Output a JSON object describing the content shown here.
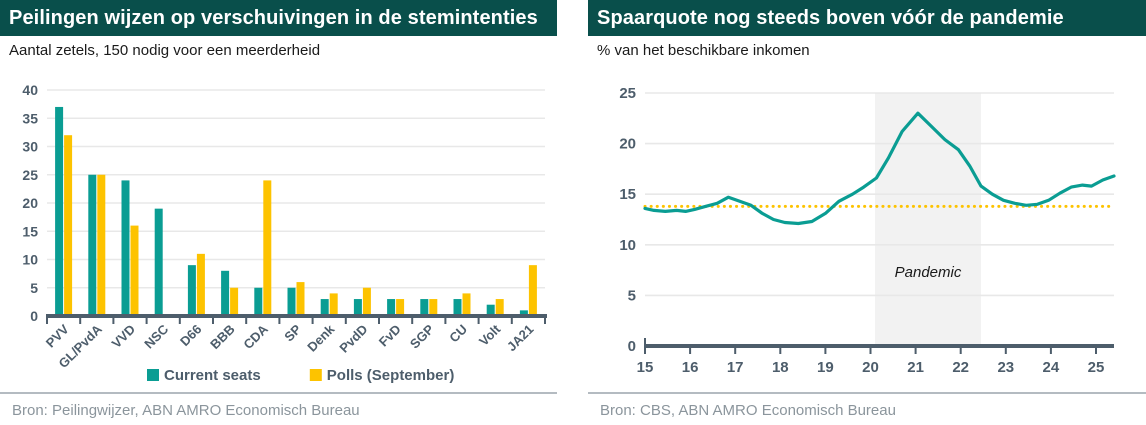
{
  "colors": {
    "banner_bg": "#094f4b",
    "teal": "#0a9d93",
    "yellow": "#fdc300",
    "slate": "#4d5d6b",
    "grid": "#e8e8e8",
    "band": "#f2f2f2",
    "source_text": "#8b959c",
    "divider": "#b4bbc1",
    "dark_text": "#1a1a1a"
  },
  "left_panel": {
    "title": "Peilingen wijzen op verschuivingen in de stemintenties",
    "subtitle": "Aantal zetels, 150 nodig voor een meerderheid",
    "source": "Bron: Peilingwijzer, ABN AMRO Economisch Bureau"
  },
  "right_panel": {
    "title": "Spaarquote nog steeds boven vóór de pandemie",
    "subtitle": "% van het beschikbare inkomen",
    "source": "Bron: CBS, ABN AMRO Economisch Bureau"
  },
  "chart_data": [
    {
      "type": "bar",
      "title": "Peilingen wijzen op verschuivingen in de stemintenties",
      "subtitle": "Aantal zetels, 150 nodig voor een meerderheid",
      "categories": [
        "PVV",
        "GL/PvdA",
        "VVD",
        "NSC",
        "D66",
        "BBB",
        "CDA",
        "SP",
        "Denk",
        "PvdD",
        "FvD",
        "SGP",
        "CU",
        "Volt",
        "JA21"
      ],
      "series": [
        {
          "name": "Current seats",
          "color_key": "teal",
          "values": [
            37,
            25,
            24,
            19,
            9,
            8,
            5,
            5,
            3,
            3,
            3,
            3,
            3,
            2,
            1
          ]
        },
        {
          "name": "Polls (September)",
          "color_key": "yellow",
          "values": [
            32,
            25,
            16,
            0,
            11,
            5,
            24,
            6,
            4,
            5,
            3,
            3,
            4,
            3,
            9
          ]
        }
      ],
      "ylim": [
        0,
        40
      ],
      "ytick_step": 5,
      "grid": true,
      "legend_position": "bottom"
    },
    {
      "type": "line",
      "title": "Spaarquote nog steeds boven vóór de pandemie",
      "subtitle": "% van het beschikbare inkomen",
      "series": [
        {
          "name": "Spaarquote",
          "color_key": "teal",
          "x": [
            15.0,
            15.2,
            15.45,
            15.7,
            15.9,
            16.1,
            16.35,
            16.6,
            16.85,
            17.1,
            17.35,
            17.6,
            17.85,
            18.1,
            18.4,
            18.7,
            19.0,
            19.3,
            19.6,
            19.85,
            20.13,
            20.4,
            20.7,
            21.05,
            21.35,
            21.65,
            21.95,
            22.2,
            22.45,
            22.7,
            22.95,
            23.2,
            23.45,
            23.7,
            23.95,
            24.2,
            24.45,
            24.7,
            24.9,
            25.15,
            25.4
          ],
          "y": [
            13.6,
            13.4,
            13.3,
            13.4,
            13.3,
            13.5,
            13.8,
            14.1,
            14.7,
            14.3,
            13.9,
            13.1,
            12.5,
            12.2,
            12.1,
            12.3,
            13.1,
            14.3,
            15.0,
            15.7,
            16.6,
            18.6,
            21.2,
            23.0,
            21.7,
            20.4,
            19.4,
            17.8,
            15.8,
            15.0,
            14.4,
            14.1,
            13.9,
            14.0,
            14.4,
            15.1,
            15.7,
            15.9,
            15.8,
            16.4,
            16.8
          ]
        }
      ],
      "reference_line": {
        "value": 13.8,
        "style": "dotted",
        "color_key": "yellow"
      },
      "shaded_region": {
        "label": "Pandemic",
        "x_start": 20.1,
        "x_end": 22.45
      },
      "xlim": [
        15,
        25.4
      ],
      "xticks": [
        15,
        16,
        17,
        18,
        19,
        20,
        21,
        22,
        23,
        24,
        25
      ],
      "ylim": [
        0,
        25
      ],
      "ytick_step": 5,
      "grid": true,
      "legend_position": "none"
    }
  ]
}
